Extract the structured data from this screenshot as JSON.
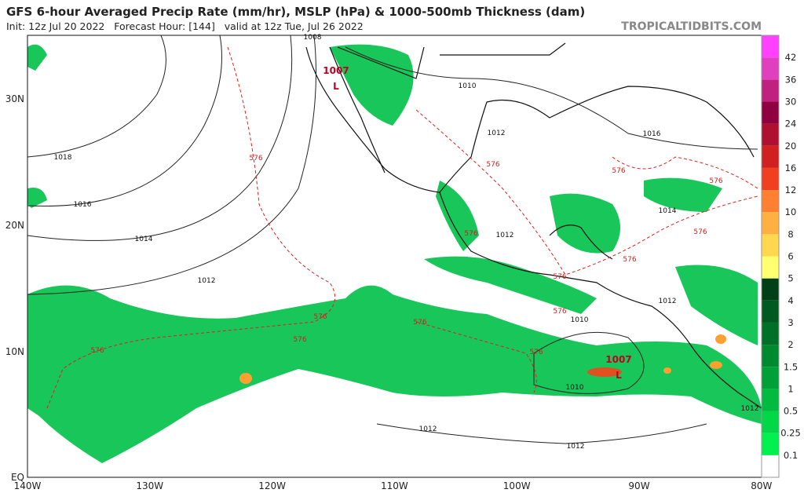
{
  "header": {
    "title": "GFS 6-hour Averaged Precip Rate (mm/hr), MSLP (hPa) & 1000-500mb Thickness (dam)",
    "subtitle": "Init: 12z Jul 20 2022   Forecast Hour: [144]   valid at 12z Tue, Jul 26 2022",
    "site": "TROPICALTIDBITS.COM"
  },
  "map": {
    "lat_labels": [
      "30N",
      "20N",
      "10N",
      "EQ"
    ],
    "lon_labels": [
      "140W",
      "130W",
      "120W",
      "110W",
      "100W",
      "90W",
      "80W"
    ],
    "isobar_labels": [
      "1018",
      "1016",
      "1014",
      "1012",
      "1010",
      "1012",
      "1016",
      "1014",
      "1012",
      "1012",
      "1010",
      "1010",
      "1012",
      "1012",
      "1012",
      "1008"
    ],
    "thickness_labels": [
      "576",
      "576",
      "576",
      "576",
      "576",
      "576",
      "576",
      "576",
      "576",
      "576",
      "576",
      "576",
      "576",
      "576"
    ],
    "lows": [
      {
        "pressure": "1007",
        "symbol": "L"
      },
      {
        "pressure": "1007",
        "symbol": "L"
      }
    ]
  },
  "colorbar": {
    "labels": [
      "0.1",
      "0.25",
      "0.5",
      "1",
      "1.5",
      "2",
      "3",
      "4",
      "5",
      "6",
      "8",
      "10",
      "12",
      "16",
      "20",
      "24",
      "30",
      "36",
      "42"
    ],
    "colors": [
      "#ffffff",
      "#00f050",
      "#00d848",
      "#00bb40",
      "#00a038",
      "#008a30",
      "#007028",
      "#005a20",
      "#004018",
      "#ffff70",
      "#ffd850",
      "#ffb040",
      "#ff8030",
      "#f04020",
      "#d02020",
      "#b01030",
      "#900040",
      "#c02080",
      "#e040c0",
      "#ff40ff"
    ]
  }
}
